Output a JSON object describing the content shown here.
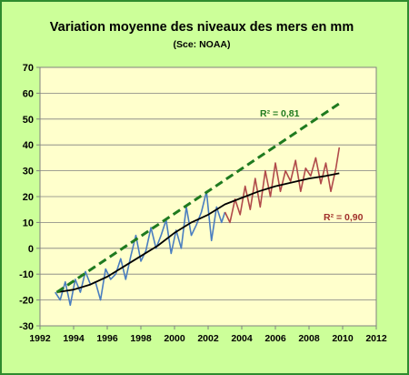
{
  "chart_data": {
    "type": "line",
    "title": "Variation moyenne des niveaux des mers en mm",
    "subtitle": "(Sce: NOAA)",
    "xlabel": "",
    "ylabel": "",
    "xlim": [
      1992,
      2012
    ],
    "ylim": [
      -30,
      70
    ],
    "x_ticks": [
      1992,
      1994,
      1996,
      1998,
      2000,
      2002,
      2004,
      2006,
      2008,
      2010,
      2012
    ],
    "y_ticks": [
      -30,
      -20,
      -10,
      0,
      10,
      20,
      30,
      40,
      50,
      60,
      70
    ],
    "grid": {
      "horizontal": true,
      "vertical": false
    },
    "legend": "none",
    "background": {
      "outer": "#ccff99",
      "plot": "#ffffcc",
      "border": "#2e8b2e"
    },
    "series": [
      {
        "kind": "observed",
        "color": "#4a7ec0",
        "x": [
          1992.9,
          1993.2,
          1993.5,
          1993.8,
          1994.1,
          1994.4,
          1994.7,
          1995.0,
          1995.3,
          1995.6,
          1995.9,
          1996.2,
          1996.5,
          1996.8,
          1997.1,
          1997.4,
          1997.7,
          1998.0,
          1998.3,
          1998.6,
          1998.9,
          1999.2,
          1999.5,
          1999.8,
          2000.1,
          2000.4,
          2000.7,
          2001.0,
          2001.3,
          2001.6,
          2001.9,
          2002.2,
          2002.5,
          2002.8,
          2003.0
        ],
        "values": [
          -17,
          -20,
          -13,
          -22,
          -12,
          -17,
          -9,
          -14,
          -13,
          -20,
          -8,
          -12,
          -10,
          -4,
          -12,
          -3,
          5,
          -5,
          -1,
          8,
          0,
          5,
          11,
          -2,
          7,
          0,
          16,
          5,
          9,
          14,
          22,
          3,
          16,
          10,
          14
        ]
      },
      {
        "kind": "observed",
        "color": "#b04a4a",
        "x": [
          2003.0,
          2003.3,
          2003.6,
          2003.9,
          2004.2,
          2004.5,
          2004.8,
          2005.1,
          2005.4,
          2005.7,
          2006.0,
          2006.3,
          2006.6,
          2006.9,
          2007.2,
          2007.5,
          2007.8,
          2008.1,
          2008.4,
          2008.7,
          2009.0,
          2009.3,
          2009.6,
          2009.8
        ],
        "values": [
          14,
          10,
          19,
          13,
          24,
          15,
          27,
          16,
          30,
          20,
          33,
          22,
          30,
          26,
          34,
          22,
          31,
          28,
          35,
          25,
          33,
          22,
          31,
          39
        ]
      },
      {
        "kind": "fit-linear",
        "color": "#1f7a1f",
        "dashed": true,
        "x": [
          1993.0,
          2009.8
        ],
        "values": [
          -17,
          56
        ]
      },
      {
        "kind": "fit-poly",
        "color": "#000000",
        "x": [
          1993.0,
          1994.0,
          1995.0,
          1996.0,
          1997.0,
          1998.0,
          1999.0,
          2000.0,
          2001.0,
          2002.0,
          2003.0,
          2004.0,
          2005.0,
          2006.0,
          2007.0,
          2008.0,
          2009.0,
          2009.8
        ],
        "values": [
          -17,
          -16,
          -14,
          -11,
          -7,
          -3,
          1,
          6,
          10,
          13,
          17,
          19.5,
          22,
          24,
          25.5,
          27,
          28,
          29
        ]
      }
    ],
    "annotations": [
      {
        "text": "R² = 0,81",
        "color": "#1f7a1f"
      },
      {
        "text": "R² = 0,90",
        "color": "#a0302a"
      }
    ]
  }
}
